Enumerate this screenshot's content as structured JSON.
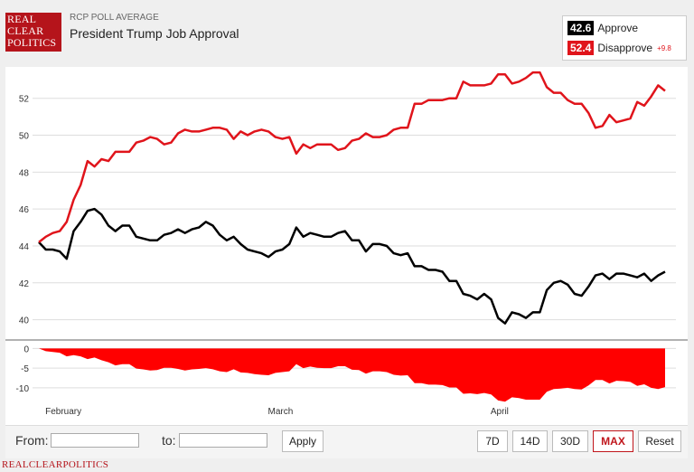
{
  "header": {
    "logo_lines": [
      "REAL",
      "CLEAR",
      "POLITICS"
    ],
    "subtitle": "RCP POLL AVERAGE",
    "title": "President Trump Job Approval"
  },
  "legend": {
    "approve": {
      "value": "42.6",
      "label": "Approve",
      "color": "#000000"
    },
    "disapprove": {
      "value": "52.4",
      "label": "Disapprove",
      "change": "+9.8",
      "color": "#e0141b"
    }
  },
  "controls": {
    "from_label": "From:",
    "to_label": "to:",
    "from_value": "",
    "to_value": "",
    "apply_label": "Apply",
    "range_buttons": [
      "7D",
      "14D",
      "30D",
      "MAX",
      "Reset"
    ],
    "active_range": "MAX"
  },
  "footer": {
    "text": "REALCLEARPOLITICS"
  },
  "chart_data": {
    "type": "line",
    "title": "President Trump Job Approval",
    "xlabel": "",
    "ylabel": "",
    "x_tick_labels": [
      "February",
      "March",
      "April"
    ],
    "x_tick_index": [
      3,
      35,
      67
    ],
    "ylim": [
      39,
      53.7
    ],
    "y_ticks": [
      40,
      42,
      44,
      46,
      48,
      50,
      52
    ],
    "spread_ylim": [
      -13,
      1
    ],
    "spread_ticks": [
      0,
      -5,
      -10
    ],
    "grid": true,
    "series": [
      {
        "name": "Approve",
        "color": "#000000",
        "values": [
          44.2,
          43.8,
          43.8,
          43.7,
          43.3,
          44.8,
          45.3,
          45.9,
          46.0,
          45.7,
          45.1,
          44.8,
          45.1,
          45.1,
          44.5,
          44.4,
          44.3,
          44.3,
          44.6,
          44.7,
          44.9,
          44.7,
          44.9,
          45.0,
          45.3,
          45.1,
          44.6,
          44.3,
          44.5,
          44.1,
          43.8,
          43.7,
          43.6,
          43.4,
          43.7,
          43.8,
          44.1,
          45.0,
          44.5,
          44.7,
          44.6,
          44.5,
          44.5,
          44.7,
          44.8,
          44.3,
          44.3,
          43.7,
          44.1,
          44.1,
          44.0,
          43.6,
          43.5,
          43.6,
          42.9,
          42.9,
          42.7,
          42.7,
          42.6,
          42.1,
          42.1,
          41.4,
          41.3,
          41.1,
          41.4,
          41.1,
          40.1,
          39.8,
          40.4,
          40.3,
          40.1,
          40.4,
          40.4,
          41.6,
          42.0,
          42.1,
          41.9,
          41.4,
          41.3,
          41.8,
          42.4,
          42.5,
          42.2,
          42.5,
          42.5,
          42.4,
          42.3,
          42.5,
          42.1,
          42.4,
          42.6
        ]
      },
      {
        "name": "Disapprove",
        "color": "#e0141b",
        "values": [
          44.2,
          44.5,
          44.7,
          44.8,
          45.3,
          46.5,
          47.3,
          48.6,
          48.3,
          48.7,
          48.6,
          49.1,
          49.1,
          49.1,
          49.6,
          49.7,
          49.9,
          49.8,
          49.5,
          49.6,
          50.1,
          50.3,
          50.2,
          50.2,
          50.3,
          50.4,
          50.4,
          50.3,
          49.8,
          50.2,
          50.0,
          50.2,
          50.3,
          50.2,
          49.9,
          49.8,
          49.9,
          49.0,
          49.5,
          49.3,
          49.5,
          49.5,
          49.5,
          49.2,
          49.3,
          49.7,
          49.8,
          50.1,
          49.9,
          49.9,
          50.0,
          50.3,
          50.4,
          50.4,
          51.7,
          51.7,
          51.9,
          51.9,
          51.9,
          52.0,
          52.0,
          52.9,
          52.7,
          52.7,
          52.7,
          52.8,
          53.3,
          53.3,
          52.8,
          52.9,
          53.1,
          53.4,
          53.4,
          52.6,
          52.3,
          52.3,
          51.9,
          51.7,
          51.7,
          51.2,
          50.4,
          50.5,
          51.1,
          50.7,
          50.8,
          50.9,
          51.8,
          51.6,
          52.1,
          52.7,
          52.4
        ]
      }
    ]
  }
}
